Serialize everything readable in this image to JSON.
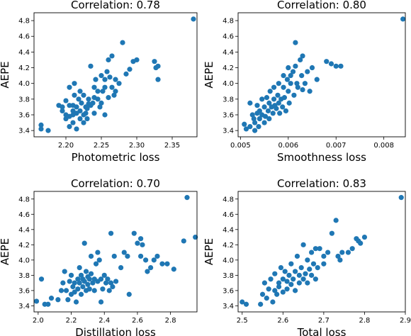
{
  "chart_data": [
    {
      "type": "scatter",
      "title": "Correlation: 0.78",
      "xlabel": "Photometric loss",
      "ylabel": "AEPE",
      "xlim": [
        2.155,
        2.385
      ],
      "ylim": [
        3.32,
        4.9
      ],
      "xticks": [
        2.2,
        2.25,
        2.3,
        2.35
      ],
      "xtick_labels": [
        "2.20",
        "2.25",
        "2.30",
        "2.35"
      ],
      "yticks": [
        3.4,
        3.6,
        3.8,
        4.0,
        4.2,
        4.4,
        4.6,
        4.8
      ],
      "ytick_labels": [
        "3.4",
        "3.6",
        "3.8",
        "4.0",
        "4.2",
        "4.4",
        "4.6",
        "4.8"
      ],
      "color": "#1f77b4",
      "grid": false,
      "points": [
        [
          2.165,
          3.47
        ],
        [
          2.165,
          3.42
        ],
        [
          2.175,
          3.4
        ],
        [
          2.19,
          3.72
        ],
        [
          2.195,
          3.7
        ],
        [
          2.195,
          3.65
        ],
        [
          2.2,
          3.6
        ],
        [
          2.2,
          3.55
        ],
        [
          2.2,
          3.78
        ],
        [
          2.205,
          3.45
        ],
        [
          2.205,
          3.72
        ],
        [
          2.205,
          3.58
        ],
        [
          2.205,
          3.95
        ],
        [
          2.21,
          3.5
        ],
        [
          2.21,
          3.6
        ],
        [
          2.21,
          3.65
        ],
        [
          2.21,
          3.72
        ],
        [
          2.212,
          3.85
        ],
        [
          2.212,
          4.0
        ],
        [
          2.215,
          3.42
        ],
        [
          2.215,
          3.62
        ],
        [
          2.215,
          3.7
        ],
        [
          2.218,
          3.8
        ],
        [
          2.22,
          3.55
        ],
        [
          2.22,
          3.65
        ],
        [
          2.22,
          3.9
        ],
        [
          2.222,
          3.75
        ],
        [
          2.225,
          3.6
        ],
        [
          2.225,
          3.5
        ],
        [
          2.225,
          3.85
        ],
        [
          2.228,
          3.7
        ],
        [
          2.228,
          3.62
        ],
        [
          2.23,
          3.55
        ],
        [
          2.23,
          3.68
        ],
        [
          2.232,
          3.74
        ],
        [
          2.232,
          3.8
        ],
        [
          2.235,
          3.72
        ],
        [
          2.235,
          4.22
        ],
        [
          2.238,
          3.75
        ],
        [
          2.24,
          3.95
        ],
        [
          2.24,
          3.62
        ],
        [
          2.24,
          3.82
        ],
        [
          2.242,
          4.05
        ],
        [
          2.245,
          3.8
        ],
        [
          2.245,
          3.9
        ],
        [
          2.248,
          3.7
        ],
        [
          2.25,
          3.75
        ],
        [
          2.25,
          4.1
        ],
        [
          2.252,
          3.9
        ],
        [
          2.255,
          4.05
        ],
        [
          2.255,
          3.6
        ],
        [
          2.255,
          3.95
        ],
        [
          2.258,
          4.15
        ],
        [
          2.26,
          3.82
        ],
        [
          2.26,
          4.3
        ],
        [
          2.262,
          4.08
        ],
        [
          2.265,
          3.95
        ],
        [
          2.265,
          4.35
        ],
        [
          2.268,
          3.85
        ],
        [
          2.27,
          3.9
        ],
        [
          2.27,
          4.05
        ],
        [
          2.275,
          4.0
        ],
        [
          2.28,
          4.52
        ],
        [
          2.285,
          4.12
        ],
        [
          2.29,
          4.18
        ],
        [
          2.295,
          4.28
        ],
        [
          2.3,
          4.3
        ],
        [
          2.325,
          4.28
        ],
        [
          2.327,
          4.2
        ],
        [
          2.33,
          4.05
        ],
        [
          2.33,
          4.22
        ],
        [
          2.38,
          4.82
        ]
      ]
    },
    {
      "type": "scatter",
      "title": "Correlation: 0.80",
      "xlabel": "Smoothness loss",
      "ylabel": "AEPE",
      "xlim": [
        0.00495,
        0.00845
      ],
      "ylim": [
        3.32,
        4.9
      ],
      "xticks": [
        0.005,
        0.006,
        0.007,
        0.008
      ],
      "xtick_labels": [
        "0.005",
        "0.006",
        "0.007",
        "0.008"
      ],
      "yticks": [
        3.4,
        3.6,
        3.8,
        4.0,
        4.2,
        4.4,
        4.6,
        4.8
      ],
      "ytick_labels": [
        "3.4",
        "3.6",
        "3.8",
        "4.0",
        "4.2",
        "4.4",
        "4.6",
        "4.8"
      ],
      "color": "#1f77b4",
      "grid": false,
      "points": [
        [
          0.00508,
          3.48
        ],
        [
          0.00512,
          3.42
        ],
        [
          0.0052,
          3.45
        ],
        [
          0.0052,
          3.75
        ],
        [
          0.00525,
          3.6
        ],
        [
          0.00528,
          3.55
        ],
        [
          0.0053,
          3.4
        ],
        [
          0.0053,
          3.5
        ],
        [
          0.00535,
          3.72
        ],
        [
          0.00535,
          3.62
        ],
        [
          0.00538,
          3.45
        ],
        [
          0.0054,
          3.55
        ],
        [
          0.0054,
          3.65
        ],
        [
          0.00545,
          3.8
        ],
        [
          0.00545,
          3.6
        ],
        [
          0.0055,
          3.5
        ],
        [
          0.0055,
          3.7
        ],
        [
          0.00552,
          3.58
        ],
        [
          0.00555,
          3.82
        ],
        [
          0.00558,
          3.65
        ],
        [
          0.0056,
          3.75
        ],
        [
          0.0056,
          3.55
        ],
        [
          0.00562,
          3.9
        ],
        [
          0.00565,
          3.7
        ],
        [
          0.00568,
          3.62
        ],
        [
          0.0057,
          3.8
        ],
        [
          0.0057,
          3.95
        ],
        [
          0.00572,
          3.72
        ],
        [
          0.00575,
          3.68
        ],
        [
          0.00578,
          3.85
        ],
        [
          0.0058,
          3.75
        ],
        [
          0.0058,
          4.0
        ],
        [
          0.00582,
          3.62
        ],
        [
          0.00585,
          3.8
        ],
        [
          0.00588,
          3.7
        ],
        [
          0.0059,
          3.95
        ],
        [
          0.0059,
          4.1
        ],
        [
          0.00592,
          3.82
        ],
        [
          0.00595,
          3.65
        ],
        [
          0.00598,
          4.05
        ],
        [
          0.006,
          3.9
        ],
        [
          0.006,
          4.2
        ],
        [
          0.00602,
          3.75
        ],
        [
          0.00605,
          4.0
        ],
        [
          0.00605,
          4.1
        ],
        [
          0.0061,
          4.15
        ],
        [
          0.00612,
          3.85
        ],
        [
          0.00615,
          4.22
        ],
        [
          0.00615,
          4.52
        ],
        [
          0.00618,
          4.0
        ],
        [
          0.0062,
          3.95
        ],
        [
          0.00625,
          4.3
        ],
        [
          0.00628,
          4.1
        ],
        [
          0.0063,
          4.35
        ],
        [
          0.0063,
          3.92
        ],
        [
          0.00635,
          4.0
        ],
        [
          0.0064,
          4.15
        ],
        [
          0.00645,
          3.9
        ],
        [
          0.0065,
          4.2
        ],
        [
          0.0066,
          4.05
        ],
        [
          0.0068,
          4.28
        ],
        [
          0.0069,
          4.25
        ],
        [
          0.007,
          4.22
        ],
        [
          0.0071,
          4.22
        ],
        [
          0.0084,
          4.82
        ]
      ]
    },
    {
      "type": "scatter",
      "title": "Correlation: 0.70",
      "xlabel": "Distillation loss",
      "ylabel": "AEPE",
      "xlim": [
        1.975,
        2.96
      ],
      "ylim": [
        3.32,
        4.9
      ],
      "xticks": [
        2.0,
        2.2,
        2.4,
        2.6,
        2.8
      ],
      "xtick_labels": [
        "2.0",
        "2.2",
        "2.4",
        "2.6",
        "2.8"
      ],
      "yticks": [
        3.4,
        3.6,
        3.8,
        4.0,
        4.2,
        4.4,
        4.6,
        4.8
      ],
      "ytick_labels": [
        "3.4",
        "3.6",
        "3.8",
        "4.0",
        "4.2",
        "4.4",
        "4.6",
        "4.8"
      ],
      "color": "#1f77b4",
      "grid": false,
      "points": [
        [
          1.99,
          3.46
        ],
        [
          2.02,
          3.75
        ],
        [
          2.04,
          3.42
        ],
        [
          2.06,
          3.42
        ],
        [
          2.08,
          3.5
        ],
        [
          2.12,
          3.48
        ],
        [
          2.14,
          3.6
        ],
        [
          2.15,
          3.7
        ],
        [
          2.16,
          3.85
        ],
        [
          2.17,
          3.6
        ],
        [
          2.18,
          3.48
        ],
        [
          2.19,
          3.72
        ],
        [
          2.2,
          3.55
        ],
        [
          2.2,
          3.8
        ],
        [
          2.21,
          3.65
        ],
        [
          2.22,
          3.7
        ],
        [
          2.22,
          3.58
        ],
        [
          2.23,
          3.45
        ],
        [
          2.24,
          3.75
        ],
        [
          2.24,
          3.62
        ],
        [
          2.25,
          3.9
        ],
        [
          2.25,
          3.7
        ],
        [
          2.26,
          3.55
        ],
        [
          2.26,
          3.8
        ],
        [
          2.27,
          3.65
        ],
        [
          2.27,
          3.75
        ],
        [
          2.28,
          3.72
        ],
        [
          2.28,
          4.22
        ],
        [
          2.29,
          3.6
        ],
        [
          2.29,
          3.85
        ],
        [
          2.3,
          3.68
        ],
        [
          2.3,
          3.78
        ],
        [
          2.31,
          3.75
        ],
        [
          2.31,
          3.62
        ],
        [
          2.32,
          4.05
        ],
        [
          2.32,
          3.82
        ],
        [
          2.33,
          3.7
        ],
        [
          2.34,
          3.75
        ],
        [
          2.34,
          3.6
        ],
        [
          2.35,
          3.95
        ],
        [
          2.36,
          4.1
        ],
        [
          2.36,
          3.72
        ],
        [
          2.37,
          4.0
        ],
        [
          2.38,
          3.75
        ],
        [
          2.38,
          3.45
        ],
        [
          2.39,
          3.62
        ],
        [
          2.4,
          3.8
        ],
        [
          2.41,
          3.7
        ],
        [
          2.42,
          3.75
        ],
        [
          2.43,
          3.6
        ],
        [
          2.44,
          3.7
        ],
        [
          2.44,
          4.35
        ],
        [
          2.45,
          3.65
        ],
        [
          2.46,
          4.05
        ],
        [
          2.47,
          3.72
        ],
        [
          2.5,
          3.9
        ],
        [
          2.52,
          4.1
        ],
        [
          2.54,
          4.05
        ],
        [
          2.55,
          3.55
        ],
        [
          2.58,
          4.35
        ],
        [
          2.6,
          4.22
        ],
        [
          2.62,
          4.28
        ],
        [
          2.62,
          4.05
        ],
        [
          2.63,
          4.2
        ],
        [
          2.65,
          4.0
        ],
        [
          2.66,
          3.85
        ],
        [
          2.68,
          3.9
        ],
        [
          2.7,
          4.0
        ],
        [
          2.72,
          4.05
        ],
        [
          2.75,
          3.95
        ],
        [
          2.78,
          3.95
        ],
        [
          2.82,
          3.88
        ],
        [
          2.88,
          4.25
        ],
        [
          2.9,
          4.82
        ],
        [
          2.95,
          4.3
        ]
      ]
    },
    {
      "type": "scatter",
      "title": "Correlation: 0.83",
      "xlabel": "Total loss",
      "ylabel": "AEPE",
      "xlim": [
        2.49,
        2.9
      ],
      "ylim": [
        3.32,
        4.9
      ],
      "xticks": [
        2.5,
        2.6,
        2.7,
        2.8,
        2.9
      ],
      "xtick_labels": [
        "2.5",
        "2.6",
        "2.7",
        "2.8",
        "2.9"
      ],
      "yticks": [
        3.4,
        3.6,
        3.8,
        4.0,
        4.2,
        4.4,
        4.6,
        4.8
      ],
      "ytick_labels": [
        "3.4",
        "3.6",
        "3.8",
        "4.0",
        "4.2",
        "4.4",
        "4.6",
        "4.8"
      ],
      "color": "#1f77b4",
      "grid": false,
      "points": [
        [
          2.5,
          3.45
        ],
        [
          2.51,
          3.42
        ],
        [
          2.545,
          3.42
        ],
        [
          2.55,
          3.55
        ],
        [
          2.555,
          3.7
        ],
        [
          2.56,
          3.5
        ],
        [
          2.565,
          3.62
        ],
        [
          2.57,
          3.75
        ],
        [
          2.575,
          3.45
        ],
        [
          2.58,
          3.6
        ],
        [
          2.58,
          3.82
        ],
        [
          2.585,
          3.55
        ],
        [
          2.59,
          3.7
        ],
        [
          2.59,
          3.65
        ],
        [
          2.595,
          3.9
        ],
        [
          2.6,
          3.75
        ],
        [
          2.6,
          3.58
        ],
        [
          2.605,
          3.85
        ],
        [
          2.61,
          3.72
        ],
        [
          2.61,
          3.62
        ],
        [
          2.615,
          3.8
        ],
        [
          2.62,
          3.68
        ],
        [
          2.62,
          3.95
        ],
        [
          2.625,
          3.75
        ],
        [
          2.63,
          3.6
        ],
        [
          2.63,
          3.85
        ],
        [
          2.635,
          4.05
        ],
        [
          2.64,
          3.7
        ],
        [
          2.64,
          3.8
        ],
        [
          2.645,
          3.9
        ],
        [
          2.65,
          3.75
        ],
        [
          2.65,
          4.2
        ],
        [
          2.655,
          3.82
        ],
        [
          2.66,
          3.7
        ],
        [
          2.66,
          4.0
        ],
        [
          2.665,
          3.88
        ],
        [
          2.67,
          4.1
        ],
        [
          2.67,
          3.8
        ],
        [
          2.675,
          3.95
        ],
        [
          2.68,
          3.75
        ],
        [
          2.68,
          4.15
        ],
        [
          2.685,
          3.9
        ],
        [
          2.69,
          4.15
        ],
        [
          2.7,
          4.05
        ],
        [
          2.7,
          3.95
        ],
        [
          2.71,
          4.1
        ],
        [
          2.72,
          4.35
        ],
        [
          2.73,
          4.52
        ],
        [
          2.735,
          4.05
        ],
        [
          2.74,
          4.0
        ],
        [
          2.745,
          4.1
        ],
        [
          2.76,
          4.1
        ],
        [
          2.77,
          4.15
        ],
        [
          2.78,
          4.28
        ],
        [
          2.785,
          4.25
        ],
        [
          2.79,
          4.22
        ],
        [
          2.8,
          4.3
        ],
        [
          2.89,
          4.82
        ]
      ]
    }
  ]
}
